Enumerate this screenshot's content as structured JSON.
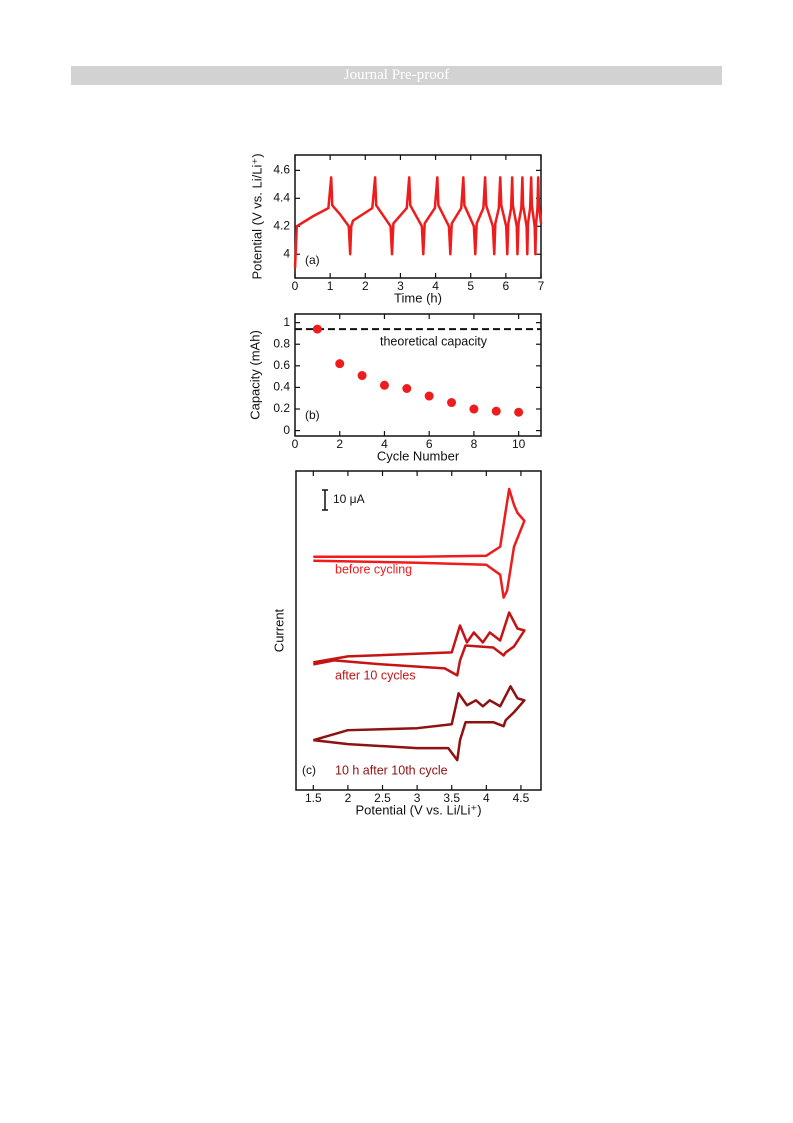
{
  "header": {
    "title": "Journal Pre-proof"
  },
  "chart_data": [
    {
      "type": "line",
      "panel_label": "(a)",
      "x_label": "Time (h)",
      "y_label": "Potential (V vs. Li/Li⁺)",
      "color": "#ee1c1c",
      "x": [
        0,
        0.05,
        0.5,
        0.95,
        1.03,
        1.06,
        1.3,
        1.53,
        1.57,
        1.6,
        1.65,
        2.2,
        2.28,
        2.31,
        2.72,
        2.76,
        2.8,
        3.18,
        3.25,
        3.28,
        3.61,
        3.65,
        3.69,
        3.98,
        4.05,
        4.08,
        4.38,
        4.42,
        4.46,
        4.73,
        4.79,
        4.82,
        5.09,
        5.13,
        5.17,
        5.36,
        5.41,
        5.44,
        5.63,
        5.67,
        5.7,
        5.8,
        5.84,
        5.87,
        6.01,
        6.04,
        6.07,
        6.15,
        6.18,
        6.2,
        6.31,
        6.33,
        6.36,
        6.44,
        6.47,
        6.49,
        6.59,
        6.61,
        6.63,
        6.69,
        6.72,
        6.74,
        6.82,
        6.84,
        6.86,
        6.9,
        6.92,
        6.94,
        7.0
      ],
      "values": [
        3.9,
        4.2,
        4.27,
        4.33,
        4.55,
        4.35,
        4.28,
        4.2,
        4.0,
        4.2,
        4.24,
        4.33,
        4.55,
        4.35,
        4.2,
        4.0,
        4.22,
        4.33,
        4.55,
        4.35,
        4.2,
        4.0,
        4.22,
        4.33,
        4.55,
        4.35,
        4.2,
        4.0,
        4.22,
        4.33,
        4.55,
        4.35,
        4.2,
        4.0,
        4.22,
        4.33,
        4.55,
        4.35,
        4.2,
        4.0,
        4.22,
        4.33,
        4.55,
        4.35,
        4.2,
        4.0,
        4.22,
        4.33,
        4.55,
        4.35,
        4.2,
        4.0,
        4.22,
        4.33,
        4.55,
        4.35,
        4.2,
        4.0,
        4.22,
        4.33,
        4.55,
        4.35,
        4.2,
        4.0,
        4.22,
        4.33,
        4.55,
        4.35,
        4.22
      ],
      "xlim": [
        0,
        7
      ],
      "ylim": [
        3.83,
        4.71
      ],
      "xticks": [
        0,
        1,
        2,
        3,
        4,
        5,
        6,
        7
      ],
      "yticks": [
        4,
        4.2,
        4.4,
        4.6
      ]
    },
    {
      "type": "scatter",
      "panel_label": "(b)",
      "x_label": "Cycle Number",
      "y_label": "Capacity (mAh)",
      "color": "#ee1c1c",
      "x": [
        1,
        2,
        3,
        4,
        5,
        6,
        7,
        8,
        9,
        10
      ],
      "values": [
        0.94,
        0.62,
        0.51,
        0.42,
        0.39,
        0.32,
        0.26,
        0.2,
        0.18,
        0.17
      ],
      "reference": {
        "value": 0.94,
        "label": "theoretical capacity"
      },
      "xlim": [
        0,
        11
      ],
      "ylim": [
        -0.05,
        1.08
      ],
      "xticks": [
        0,
        2,
        4,
        6,
        8,
        10
      ],
      "yticks": [
        0,
        0.2,
        0.4,
        0.6,
        0.8,
        1
      ]
    },
    {
      "type": "line",
      "panel_label": "(c)",
      "x_label": "Potential (V vs. Li/Li⁺)",
      "y_label": "Current",
      "scale_bar": {
        "value": 10,
        "label": "10 μA"
      },
      "xlim": [
        1.25,
        4.79
      ],
      "ylim": [
        0,
        160
      ],
      "xticks": [
        1.5,
        2,
        2.5,
        3,
        3.5,
        4,
        4.5
      ],
      "series": [
        {
          "name": "before cycling",
          "color": "#ee1c1c",
          "x": [
            1.5,
            3.0,
            4.0,
            4.2,
            4.28,
            4.33,
            4.4,
            4.45,
            4.55,
            4.4,
            4.3,
            4.25,
            4.2,
            4.0,
            3.0,
            1.5
          ],
          "values": [
            117,
            117,
            117.5,
            122,
            140,
            151,
            143,
            139,
            135,
            122,
            100,
            96.5,
            108,
            113,
            114,
            115
          ]
        },
        {
          "name": "after 10 cycles",
          "color": "#c41414",
          "x": [
            1.5,
            2.0,
            3.5,
            3.62,
            3.72,
            3.82,
            3.95,
            4.05,
            4.2,
            4.33,
            4.45,
            4.55,
            4.4,
            4.28,
            4.25,
            4.1,
            3.7,
            3.62,
            3.58,
            3.4,
            2.5,
            1.8,
            1.5
          ],
          "values": [
            64,
            67,
            69,
            82.5,
            74,
            79,
            74,
            79,
            75,
            89,
            81,
            80,
            72,
            69,
            67.5,
            71.5,
            72.5,
            65,
            57.5,
            61,
            63,
            65,
            63
          ]
        },
        {
          "name": "10 h after 10th cycle",
          "color": "#8e1212",
          "x": [
            1.5,
            2.0,
            3.0,
            3.5,
            3.6,
            3.72,
            3.85,
            3.95,
            4.05,
            4.2,
            4.35,
            4.45,
            4.55,
            4.4,
            4.28,
            4.25,
            4.1,
            3.7,
            3.62,
            3.58,
            3.45,
            3.0,
            2.0,
            1.5
          ],
          "values": [
            25,
            30,
            31,
            33,
            48.5,
            42.5,
            45,
            42,
            45,
            42,
            52,
            46,
            45,
            39,
            35,
            32,
            34,
            34,
            25,
            15,
            21,
            21,
            23,
            25
          ]
        }
      ]
    }
  ]
}
